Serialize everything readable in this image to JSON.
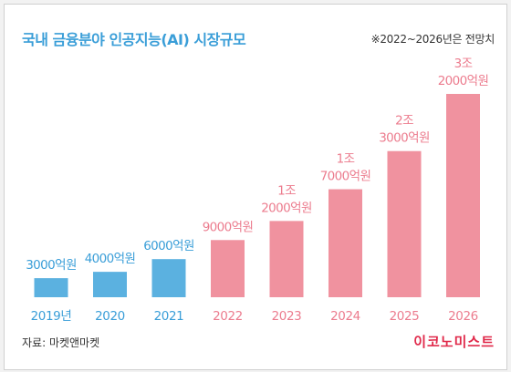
{
  "header": {
    "title": "국내 금융분야 인공지능(AI) 시장규모",
    "note": "※2022~2026년은 전망치"
  },
  "footer": {
    "source": "자료: 마켓앤마켓",
    "brand": "이코노미스트"
  },
  "colors": {
    "actual": "#5bb1e0",
    "forecast": "#f0929f",
    "year_actual": "#3a9ed8",
    "year_forecast": "#ec7c8e",
    "title": "#3a9ed8",
    "brand": "#e0294a"
  },
  "chart_data": {
    "type": "bar",
    "title": "국내 금융분야 인공지능(AI) 시장규모",
    "categories": [
      "2019년",
      "2020",
      "2021",
      "2022",
      "2023",
      "2024",
      "2025",
      "2026"
    ],
    "values": [
      3000,
      4000,
      6000,
      9000,
      12000,
      17000,
      23000,
      32000
    ],
    "unit": "억원",
    "forecast_from_index": 3,
    "data_labels": [
      [
        "3000억원"
      ],
      [
        "4000억원"
      ],
      [
        "6000억원"
      ],
      [
        "9000억원"
      ],
      [
        "1조",
        "2000억원"
      ],
      [
        "1조",
        "7000억원"
      ],
      [
        "2조",
        "3000억원"
      ],
      [
        "3조",
        "2000억원"
      ]
    ],
    "xlabel": "",
    "ylabel": "",
    "ylim": [
      0,
      32000
    ],
    "grid": false,
    "legend": "none"
  }
}
